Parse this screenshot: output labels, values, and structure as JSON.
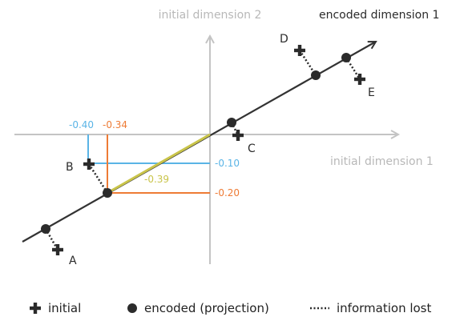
{
  "axes": {
    "initial_dim_1": "initial dimension 1",
    "initial_dim_2": "initial dimension 2",
    "encoded_dim_1": "encoded dimension 1",
    "axis_color": "#c4c4c4",
    "encoded_axis_color": "#333333"
  },
  "points": [
    {
      "label": "A"
    },
    {
      "label": "B"
    },
    {
      "label": "C"
    },
    {
      "label": "D"
    },
    {
      "label": "E"
    }
  ],
  "annotations": {
    "b_initial_x": "-0.40",
    "b_encoded_x": "-0.34",
    "b_initial_y": "-0.10",
    "b_encoded_y": "-0.20",
    "b_encoded_value": "-0.39"
  },
  "colors": {
    "initial_projection": "#5ab4e6",
    "encoded_projection": "#ee7b35",
    "encoded_value": "#c9c44a",
    "marker": "#2b2b2b"
  },
  "legend": {
    "initial": "initial",
    "encoded": "encoded (projection)",
    "information_lost": "information lost"
  }
}
